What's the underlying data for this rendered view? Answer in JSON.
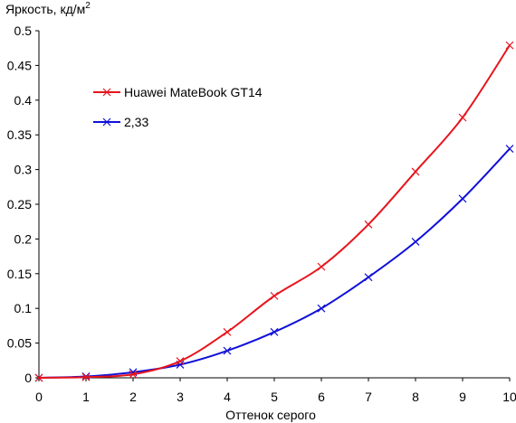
{
  "chart_data": {
    "type": "line",
    "ylabel": "Яркость, кд/м",
    "ylabel_sup": "2",
    "xlabel": "Оттенок серого",
    "xlim": [
      0,
      10
    ],
    "ylim": [
      0,
      0.5
    ],
    "x_ticks": [
      "0",
      "1",
      "2",
      "3",
      "4",
      "5",
      "6",
      "7",
      "8",
      "9",
      "10"
    ],
    "y_ticks": [
      "0",
      "0.05",
      "0.1",
      "0.15",
      "0.2",
      "0.25",
      "0.3",
      "0.35",
      "0.4",
      "0.45",
      "0.5"
    ],
    "grid": false,
    "legend_position": "top-left",
    "x": [
      0,
      1,
      2,
      3,
      4,
      5,
      6,
      7,
      8,
      9,
      10
    ],
    "series": [
      {
        "name": "Huawei MateBook GT14",
        "color": "#e8141c",
        "marker": "x",
        "values": [
          0,
          0.001,
          0.005,
          0.024,
          0.066,
          0.118,
          0.16,
          0.221,
          0.297,
          0.375,
          0.479
        ]
      },
      {
        "name": "2,33",
        "color": "#1010d8",
        "marker": "x",
        "values": [
          0,
          0.002,
          0.008,
          0.019,
          0.039,
          0.066,
          0.1,
          0.145,
          0.196,
          0.258,
          0.33
        ]
      }
    ]
  }
}
